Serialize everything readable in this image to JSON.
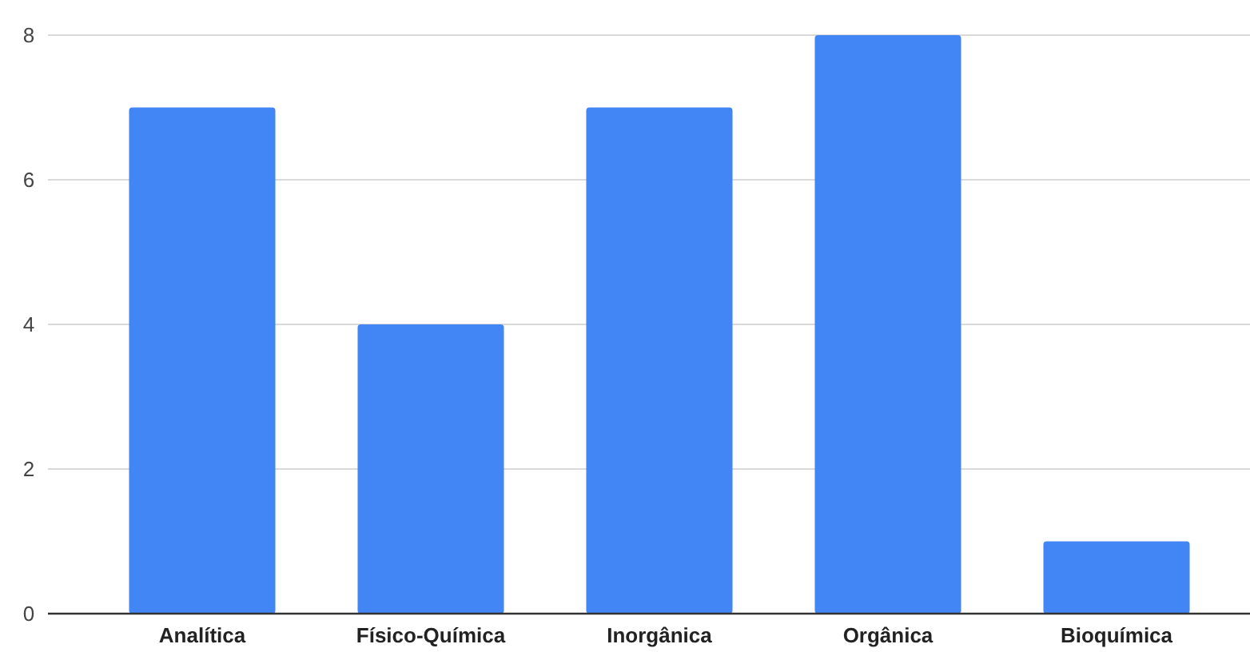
{
  "chart_data": {
    "type": "bar",
    "categories": [
      "Analítica",
      "Físico-Química",
      "Inorgânica",
      "Orgânica",
      "Bioquímica"
    ],
    "values": [
      7,
      4,
      7,
      8,
      1
    ],
    "color": "#4285f4",
    "ylim": [
      0,
      8
    ],
    "yticks": [
      0,
      2,
      4,
      6,
      8
    ],
    "grid": "y"
  }
}
